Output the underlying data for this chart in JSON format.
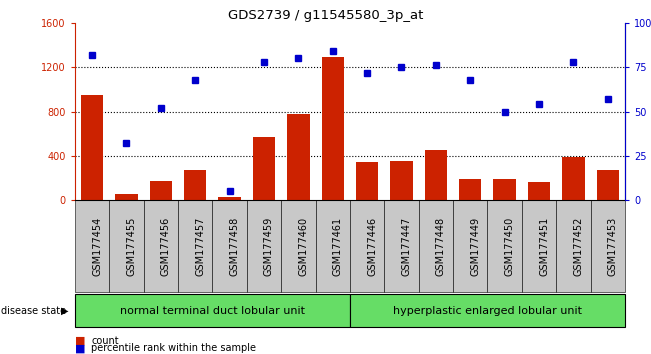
{
  "title": "GDS2739 / g11545580_3p_at",
  "categories": [
    "GSM177454",
    "GSM177455",
    "GSM177456",
    "GSM177457",
    "GSM177458",
    "GSM177459",
    "GSM177460",
    "GSM177461",
    "GSM177446",
    "GSM177447",
    "GSM177448",
    "GSM177449",
    "GSM177450",
    "GSM177451",
    "GSM177452",
    "GSM177453"
  ],
  "counts": [
    950,
    50,
    170,
    270,
    30,
    570,
    780,
    1290,
    340,
    350,
    450,
    190,
    190,
    160,
    390,
    270
  ],
  "percentiles": [
    82,
    32,
    52,
    68,
    5,
    78,
    80,
    84,
    72,
    75,
    76,
    68,
    50,
    54,
    78,
    57
  ],
  "group1_label": "normal terminal duct lobular unit",
  "group2_label": "hyperplastic enlarged lobular unit",
  "group1_count": 8,
  "group2_count": 8,
  "bar_color": "#cc2200",
  "dot_color": "#0000cc",
  "ylim_left": [
    0,
    1600
  ],
  "ylim_right": [
    0,
    100
  ],
  "yticks_left": [
    0,
    400,
    800,
    1200,
    1600
  ],
  "yticks_right": [
    0,
    25,
    50,
    75,
    100
  ],
  "group1_color": "#66dd66",
  "group2_color": "#66dd66",
  "tick_bg_color": "#c8c8c8",
  "title_fontsize": 9.5,
  "tick_fontsize": 7,
  "label_fontsize": 8
}
